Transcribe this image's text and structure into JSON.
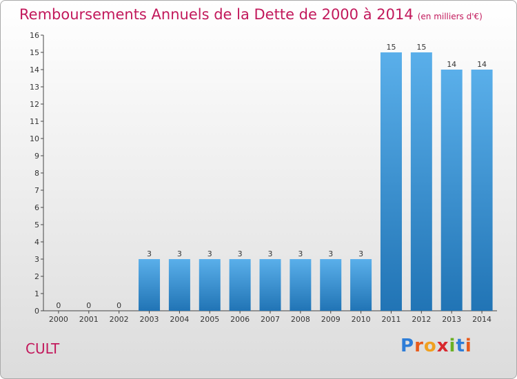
{
  "title": "Remboursements Annuels de la Dette de 2000 à 2014",
  "subtitle": "(en milliers d'€)",
  "commune": "CULT",
  "logo": "Proxiti",
  "colors": {
    "title": "#c2185b",
    "bar_top": "#5aafea",
    "bar_bottom": "#2174b5"
  },
  "chart_data": {
    "type": "bar",
    "title": "Remboursements Annuels de la Dette de 2000 à 2014",
    "subtitle": "(en milliers d'€)",
    "categories": [
      "2000",
      "2001",
      "2002",
      "2003",
      "2004",
      "2005",
      "2006",
      "2007",
      "2008",
      "2009",
      "2010",
      "2011",
      "2012",
      "2013",
      "2014"
    ],
    "values": [
      0,
      0,
      0,
      3,
      3,
      3,
      3,
      3,
      3,
      3,
      3,
      15,
      15,
      14,
      14
    ],
    "ylim": [
      0,
      16
    ],
    "yticks": [
      0,
      1,
      2,
      3,
      4,
      5,
      6,
      7,
      8,
      9,
      10,
      11,
      12,
      13,
      14,
      15,
      16
    ],
    "grid": false,
    "legend": "none"
  }
}
